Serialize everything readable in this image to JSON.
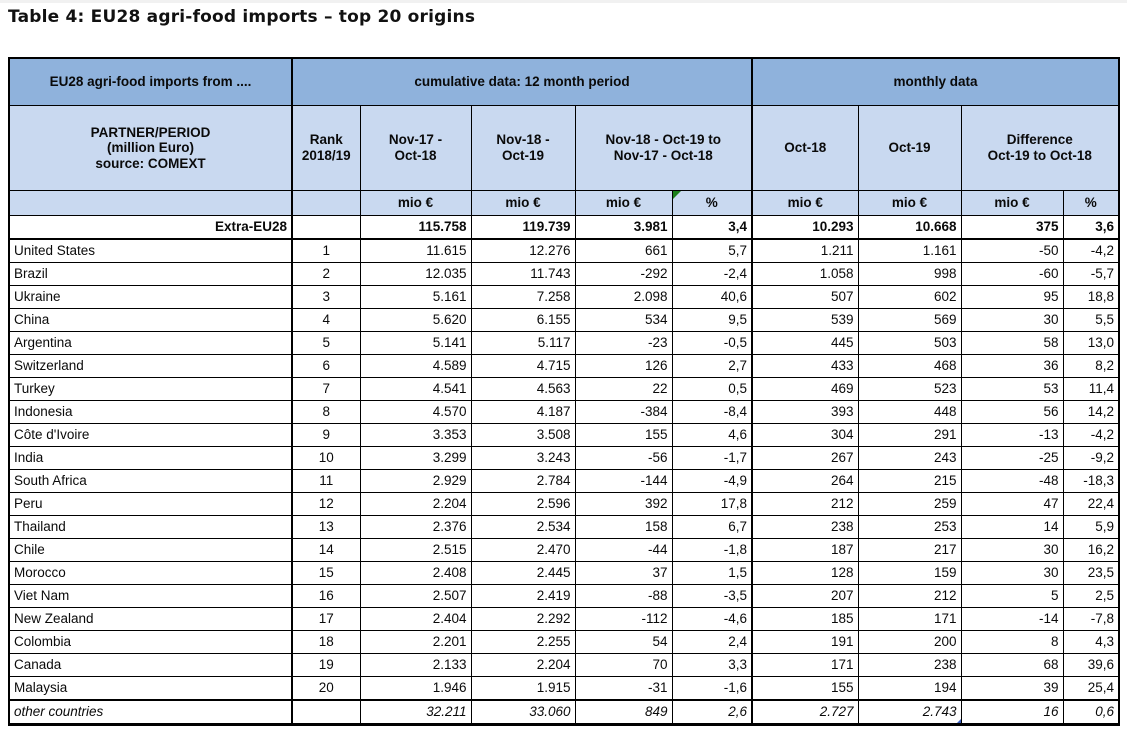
{
  "title": "Table 4: EU28 agri-food imports – top 20 origins",
  "colors": {
    "header-blue": "#8FB2DC",
    "header-light": "#C9D9F0",
    "row-pink": "#F2DCDB",
    "flag-green": "#1a7f1a",
    "marker-blue": "#3B5FC0"
  },
  "table": {
    "corner_label": "EU28 agri-food imports from ....",
    "group_cumulative": "cumulative data: 12 month period",
    "group_monthly": "monthly data",
    "partner_header": "PARTNER/PERIOD\n(million Euro)\nsource: COMEXT",
    "col_rank": "Rank\n2018/19",
    "col_cum_period1": "Nov-17 -\nOct-18",
    "col_cum_period2": "Nov-18 -\nOct-19",
    "col_cum_diff": "Nov-18 - Oct-19 to\nNov-17 - Oct-18",
    "col_month1": "Oct-18",
    "col_month2": "Oct-19",
    "col_month_diff": "Difference\nOct-19 to Oct-18",
    "units": {
      "mio": "mio €",
      "pct": "%"
    },
    "rows": [
      {
        "variant": "total",
        "name": "Extra-EU28",
        "rank": "",
        "values": [
          "115.758",
          "119.739",
          "3.981",
          "3,4",
          "10.293",
          "10.668",
          "375",
          "3,6"
        ]
      },
      {
        "variant": "pink",
        "name": "United States",
        "rank": "1",
        "values": [
          "11.615",
          "12.276",
          "661",
          "5,7",
          "1.211",
          "1.161",
          "-50",
          "-4,2"
        ]
      },
      {
        "variant": "white",
        "name": "Brazil",
        "rank": "2",
        "values": [
          "12.035",
          "11.743",
          "-292",
          "-2,4",
          "1.058",
          "998",
          "-60",
          "-5,7"
        ]
      },
      {
        "variant": "pink",
        "name": "Ukraine",
        "rank": "3",
        "values": [
          "5.161",
          "7.258",
          "2.098",
          "40,6",
          "507",
          "602",
          "95",
          "18,8"
        ]
      },
      {
        "variant": "white",
        "name": "China",
        "rank": "4",
        "values": [
          "5.620",
          "6.155",
          "534",
          "9,5",
          "539",
          "569",
          "30",
          "5,5"
        ]
      },
      {
        "variant": "pink",
        "name": "Argentina",
        "rank": "5",
        "values": [
          "5.141",
          "5.117",
          "-23",
          "-0,5",
          "445",
          "503",
          "58",
          "13,0"
        ]
      },
      {
        "variant": "white",
        "name": "Switzerland",
        "rank": "6",
        "values": [
          "4.589",
          "4.715",
          "126",
          "2,7",
          "433",
          "468",
          "36",
          "8,2"
        ]
      },
      {
        "variant": "pink",
        "name": "Turkey",
        "rank": "7",
        "values": [
          "4.541",
          "4.563",
          "22",
          "0,5",
          "469",
          "523",
          "53",
          "11,4"
        ]
      },
      {
        "variant": "white",
        "name": "Indonesia",
        "rank": "8",
        "values": [
          "4.570",
          "4.187",
          "-384",
          "-8,4",
          "393",
          "448",
          "56",
          "14,2"
        ]
      },
      {
        "variant": "pink",
        "name": "Côte d'Ivoire",
        "rank": "9",
        "values": [
          "3.353",
          "3.508",
          "155",
          "4,6",
          "304",
          "291",
          "-13",
          "-4,2"
        ]
      },
      {
        "variant": "white",
        "name": "India",
        "rank": "10",
        "values": [
          "3.299",
          "3.243",
          "-56",
          "-1,7",
          "267",
          "243",
          "-25",
          "-9,2"
        ]
      },
      {
        "variant": "pink",
        "name": "South Africa",
        "rank": "11",
        "values": [
          "2.929",
          "2.784",
          "-144",
          "-4,9",
          "264",
          "215",
          "-48",
          "-18,3"
        ]
      },
      {
        "variant": "white",
        "name": "Peru",
        "rank": "12",
        "values": [
          "2.204",
          "2.596",
          "392",
          "17,8",
          "212",
          "259",
          "47",
          "22,4"
        ]
      },
      {
        "variant": "pink",
        "name": "Thailand",
        "rank": "13",
        "values": [
          "2.376",
          "2.534",
          "158",
          "6,7",
          "238",
          "253",
          "14",
          "5,9"
        ]
      },
      {
        "variant": "white",
        "name": "Chile",
        "rank": "14",
        "values": [
          "2.515",
          "2.470",
          "-44",
          "-1,8",
          "187",
          "217",
          "30",
          "16,2"
        ]
      },
      {
        "variant": "pink",
        "name": "Morocco",
        "rank": "15",
        "values": [
          "2.408",
          "2.445",
          "37",
          "1,5",
          "128",
          "159",
          "30",
          "23,5"
        ]
      },
      {
        "variant": "white",
        "name": "Viet Nam",
        "rank": "16",
        "values": [
          "2.507",
          "2.419",
          "-88",
          "-3,5",
          "207",
          "212",
          "5",
          "2,5"
        ]
      },
      {
        "variant": "pink",
        "name": "New Zealand",
        "rank": "17",
        "values": [
          "2.404",
          "2.292",
          "-112",
          "-4,6",
          "185",
          "171",
          "-14",
          "-7,8"
        ]
      },
      {
        "variant": "white",
        "name": "Colombia",
        "rank": "18",
        "values": [
          "2.201",
          "2.255",
          "54",
          "2,4",
          "191",
          "200",
          "8",
          "4,3"
        ]
      },
      {
        "variant": "pink",
        "name": "Canada",
        "rank": "19",
        "values": [
          "2.133",
          "2.204",
          "70",
          "3,3",
          "171",
          "238",
          "68",
          "39,6"
        ]
      },
      {
        "variant": "white",
        "name": "Malaysia",
        "rank": "20",
        "values": [
          "1.946",
          "1.915",
          "-31",
          "-1,6",
          "155",
          "194",
          "39",
          "25,4"
        ]
      },
      {
        "variant": "other",
        "name": "other countries",
        "rank": "",
        "values": [
          "32.211",
          "33.060",
          "849",
          "2,6",
          "2.727",
          "2.743",
          "16",
          "0,6"
        ],
        "marker": "blue-corner"
      }
    ]
  }
}
